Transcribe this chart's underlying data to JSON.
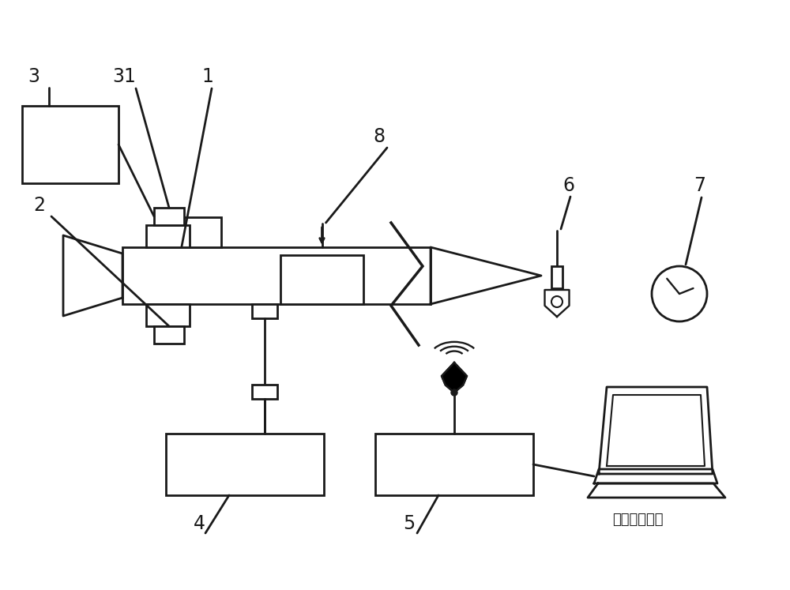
{
  "bg_color": "#ffffff",
  "line_color": "#1a1a1a",
  "lw": 2.0,
  "fig_width": 10.0,
  "fig_height": 7.47
}
